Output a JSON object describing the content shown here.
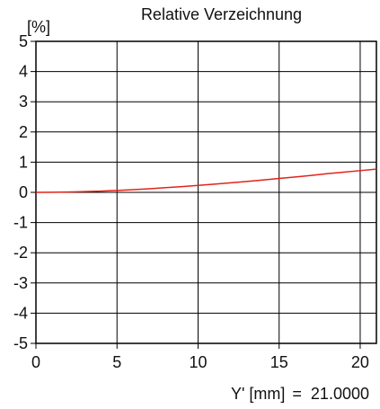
{
  "chart_data": {
    "type": "line",
    "title": "Relative Verzeichnung",
    "ylabel": "[%]",
    "xlabel": "Y' [mm]",
    "xlim": [
      0,
      21
    ],
    "ylim": [
      -5,
      5
    ],
    "x_ticks": [
      0,
      5,
      10,
      15,
      20
    ],
    "y_ticks": [
      5,
      4,
      3,
      2,
      1,
      0,
      -1,
      -2,
      -3,
      -4,
      -5
    ],
    "grid": true,
    "series": [
      {
        "color": "#e2231a",
        "x": [
          0,
          1,
          2,
          3,
          4,
          5,
          6,
          7,
          8,
          9,
          10,
          11,
          12,
          13,
          14,
          15,
          16,
          17,
          18,
          19,
          20,
          21
        ],
        "y": [
          0,
          0.004,
          0.012,
          0.025,
          0.042,
          0.065,
          0.09,
          0.12,
          0.155,
          0.19,
          0.23,
          0.27,
          0.315,
          0.36,
          0.41,
          0.46,
          0.51,
          0.56,
          0.62,
          0.67,
          0.72,
          0.77
        ]
      }
    ]
  },
  "footer": {
    "label": "Y' [mm]",
    "equals": "=",
    "value": "21.0000"
  }
}
